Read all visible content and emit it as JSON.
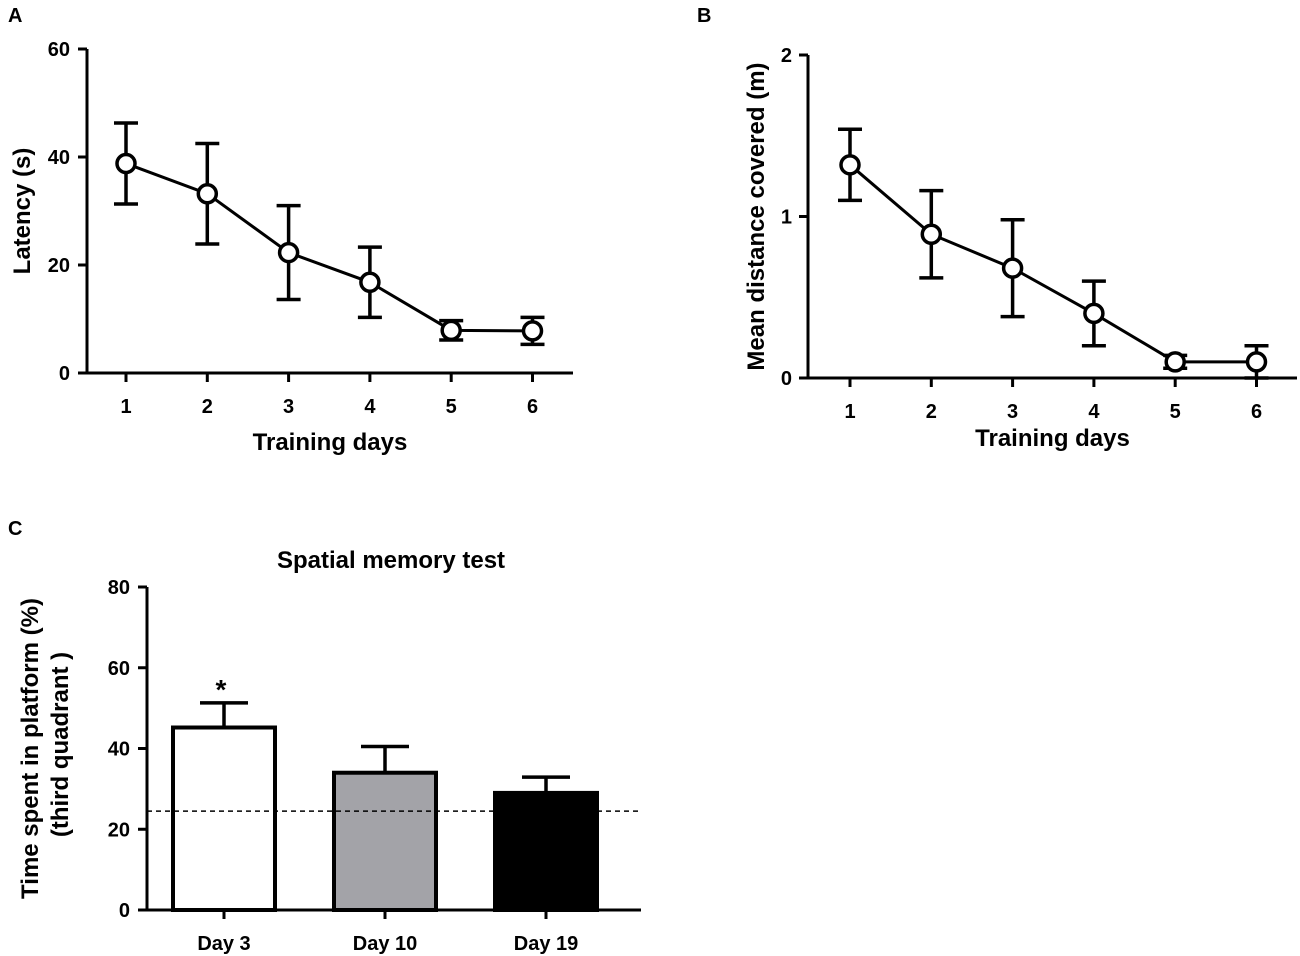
{
  "chart_data": [
    {
      "panel": "A",
      "type": "line",
      "xlabel": "Training days",
      "ylabel": "Latency (s)",
      "categories": [
        "1",
        "2",
        "3",
        "4",
        "5",
        "6"
      ],
      "x": [
        1,
        2,
        3,
        4,
        5,
        6
      ],
      "values": [
        38.8,
        33.2,
        22.3,
        16.8,
        7.9,
        7.8
      ],
      "errors": [
        7.5,
        9.3,
        8.7,
        6.5,
        1.8,
        2.5
      ],
      "ylim": [
        0,
        60
      ],
      "yticks": [
        "0",
        "20",
        "40",
        "60"
      ]
    },
    {
      "panel": "B",
      "type": "line",
      "xlabel": "Training days",
      "ylabel": "Mean distance covered (m)",
      "categories": [
        "1",
        "2",
        "3",
        "4",
        "5",
        "6"
      ],
      "x": [
        1,
        2,
        3,
        4,
        5,
        6
      ],
      "values": [
        1.32,
        0.89,
        0.68,
        0.4,
        0.1,
        0.1
      ],
      "errors": [
        0.22,
        0.27,
        0.3,
        0.2,
        0.04,
        0.1
      ],
      "ylim": [
        0,
        2
      ],
      "yticks": [
        "0",
        "1",
        "2"
      ]
    },
    {
      "panel": "C",
      "type": "bar",
      "title": "Spatial memory test",
      "xlabel": "",
      "ylabel_line1": "Time spent in platform (%)",
      "ylabel_line2": "(third quadrant )",
      "categories": [
        "Day 3",
        "Day 10",
        "Day 19"
      ],
      "values": [
        45.2,
        34.0,
        29.0
      ],
      "errors": [
        6.1,
        6.5,
        3.9
      ],
      "colors": [
        "#ffffff",
        "#a3a3a8",
        "#000000"
      ],
      "annotations": [
        "*",
        "",
        ""
      ],
      "reference_line": 24.5,
      "ylim": [
        0,
        80
      ],
      "yticks": [
        "0",
        "20",
        "40",
        "60",
        "80"
      ]
    }
  ]
}
